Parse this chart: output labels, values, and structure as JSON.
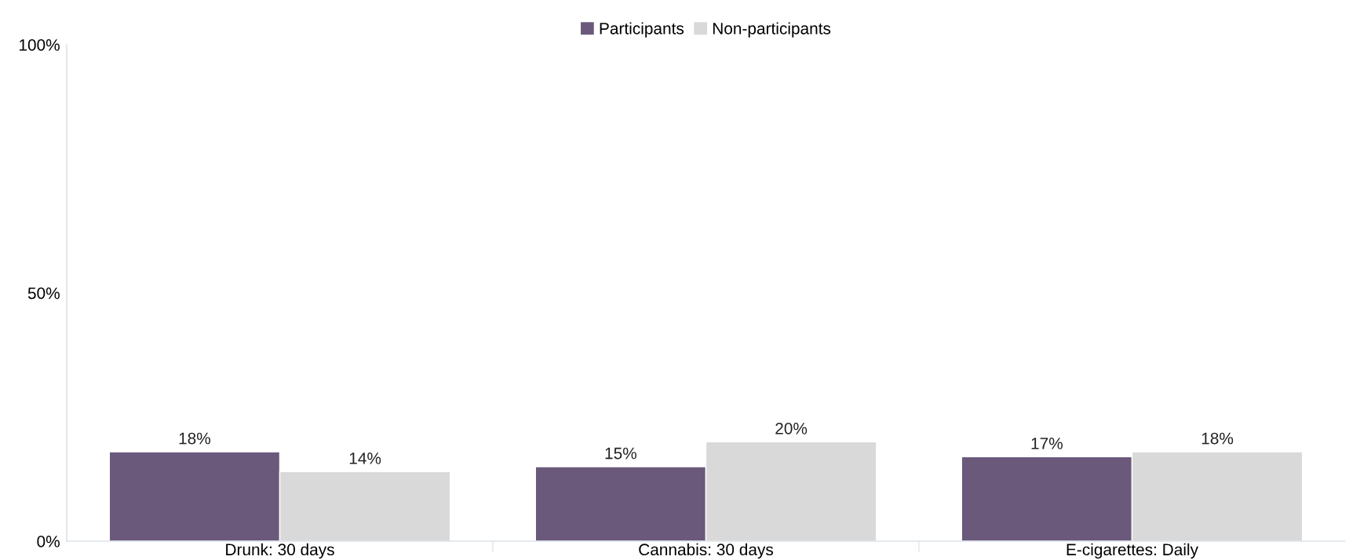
{
  "chart_data": {
    "type": "bar",
    "categories": [
      "Drunk: 30 days",
      "Cannabis: 30 days",
      "E-cigarettes: Daily"
    ],
    "series": [
      {
        "name": "Participants",
        "color": "#6b597c",
        "values": [
          18,
          15,
          17
        ],
        "value_labels": [
          "18%",
          "15%",
          "17%"
        ]
      },
      {
        "name": "Non-participants",
        "color": "#d9d9d9",
        "values": [
          14,
          20,
          18
        ],
        "value_labels": [
          "14%",
          "20%",
          "18%"
        ]
      }
    ],
    "ylim": [
      0,
      100
    ],
    "yticks": [
      {
        "value": 0,
        "label": "0%"
      },
      {
        "value": 50,
        "label": "50%"
      },
      {
        "value": 100,
        "label": "100%"
      }
    ],
    "grid": false,
    "legend": "top"
  }
}
